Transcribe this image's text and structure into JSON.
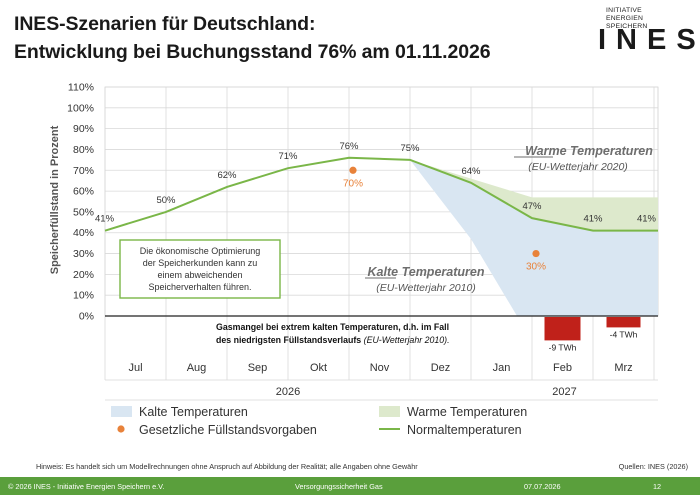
{
  "header": {
    "title_line1": "INES-Szenarien für Deutschland:",
    "title_line2": "Entwicklung bei Buchungsstand 76% am 01.11.2026",
    "logo_tagline_1": "Initiative",
    "logo_tagline_2": "Energien Speichern",
    "logo_wordmark": "INES"
  },
  "chart_data": {
    "type": "line",
    "ylabel": "Speicherfüllstand in Prozent",
    "ylim": [
      0,
      110
    ],
    "yticks": [
      0,
      10,
      20,
      30,
      40,
      50,
      60,
      70,
      80,
      90,
      100,
      110
    ],
    "ytick_labels": [
      "0%",
      "10%",
      "20%",
      "30%",
      "40%",
      "50%",
      "60%",
      "70%",
      "80%",
      "90%",
      "100%",
      "110%"
    ],
    "categories": [
      "Jul",
      "Aug",
      "Sep",
      "Okt",
      "Nov",
      "Dez",
      "Jan",
      "Feb",
      "Mrz"
    ],
    "year_labels": [
      {
        "label": "2026",
        "from": "Jul",
        "to": "Dez"
      },
      {
        "label": "2027",
        "from": "Jan",
        "to": "Mrz"
      }
    ],
    "series": [
      {
        "name": "Normaltemperaturen",
        "color": "#7ab648",
        "points": [
          {
            "x": "Jul",
            "y": 41,
            "label": "41%"
          },
          {
            "x": "Aug",
            "y": 50,
            "label": "50%"
          },
          {
            "x": "Sep",
            "y": 62,
            "label": "62%"
          },
          {
            "x": "Okt",
            "y": 71,
            "label": "71%"
          },
          {
            "x": "Nov",
            "y": 76,
            "label": "76%"
          },
          {
            "x": "Dez",
            "y": 75,
            "label": "75%"
          },
          {
            "x": "Jan",
            "y": 64,
            "label": "64%"
          },
          {
            "x": "Feb",
            "y": 47,
            "label": "47%"
          },
          {
            "x": "Mrz",
            "y": 41,
            "label": "41%"
          },
          {
            "x": "Mrz_end",
            "y": 41,
            "label": "41%"
          }
        ]
      },
      {
        "name": "Warme Temperaturen",
        "color": "#dde9cc",
        "upper": [
          75,
          66,
          57,
          57
        ]
      },
      {
        "name": "Kalte Temperaturen",
        "color": "#d9e6f2",
        "lower": [
          75,
          37,
          0,
          0
        ]
      },
      {
        "name": "Gesetzliche Füllstandsvorgaben",
        "color": "#e8823a",
        "points": [
          {
            "x": "Nov",
            "y": 70,
            "label": "70%"
          },
          {
            "x": "Feb",
            "y": 30,
            "label": "30%"
          }
        ]
      }
    ],
    "shortfall_bars": [
      {
        "x": "Feb",
        "value": -9,
        "label": "-9 TWh"
      },
      {
        "x": "Mrz",
        "value": -4,
        "label": "-4 TWh"
      }
    ],
    "annotations": {
      "warm_title": "Warme Temperaturen",
      "warm_sub": "(EU-Wetterjahr 2020)",
      "cold_title": "Kalte Temperaturen",
      "cold_sub": "(EU-Wetterjahr 2010)",
      "box_lines": [
        "Die ökonomische Optimierung",
        "der Speicherkunden kann zu",
        "einem abweichenden",
        "Speicherverhalten führen."
      ],
      "gas_line1": "Gasmangel bei extrem kalten Temperaturen, d.h. im Fall",
      "gas_line2_plain": "des niedrigsten Füllstandsverlaufs ",
      "gas_line2_italic": "(EU-Wetterjahr 2010)."
    },
    "legend": [
      {
        "label": "Kalte Temperaturen",
        "kind": "area",
        "color": "#d9e6f2"
      },
      {
        "label": "Warme Temperaturen",
        "kind": "area",
        "color": "#dde9cc"
      },
      {
        "label": "Gesetzliche Füllstandsvorgaben",
        "kind": "dot",
        "color": "#e8823a"
      },
      {
        "label": "Normaltemperaturen",
        "kind": "line",
        "color": "#7ab648"
      }
    ],
    "grid": true,
    "legend_position": "bottom"
  },
  "footer": {
    "note": "Hinweis: Es handelt sich um Modellrechnungen ohne Anspruch auf Abbildung der Realität; alle Angaben ohne Gewähr",
    "source": "Quellen: INES (2026)",
    "copyright": "© 2026 INES - Initiative Energien Speichern e.V.",
    "topic": "Versorgungssicherheit Gas",
    "date": "07.07.2026",
    "page": "12"
  }
}
